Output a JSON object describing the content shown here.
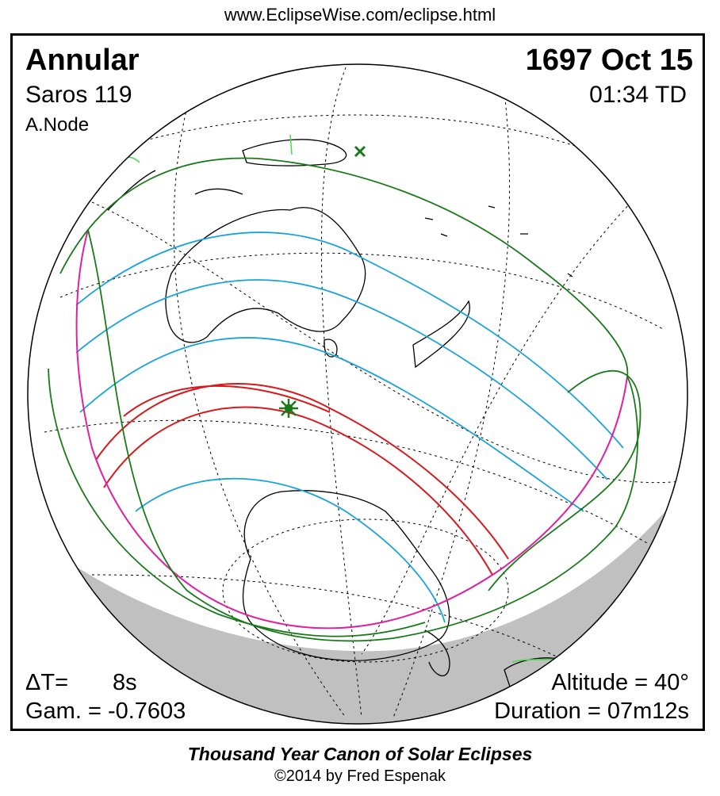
{
  "source_url": "www.EclipseWise.com/eclipse.html",
  "eclipse": {
    "type": "Annular",
    "saros": "Saros 119",
    "node": "A.Node",
    "date": "1697 Oct 15",
    "time": "01:34 TD",
    "delta_t_label": "ΔT=",
    "delta_t_value": "8s",
    "gamma": "Gam. = -0.7603",
    "altitude": "Altitude = 40°",
    "duration": "Duration = 07m12s"
  },
  "footer": {
    "canon": "Thousand Year Canon of Solar Eclipses",
    "copyright": "©2014 by Fred Espenak"
  },
  "colors": {
    "central_path": "#d7191c",
    "partial_limits": "#1aa3db",
    "penumbra_limits": "#1a7a1a",
    "rise_set_curve": "#e0209c",
    "night_side": "#c0c0c0",
    "coastline": "#000000",
    "grid": "#000000"
  },
  "markers": {
    "greatest_eclipse": "star-icon",
    "greatest_duration": "x-icon"
  }
}
